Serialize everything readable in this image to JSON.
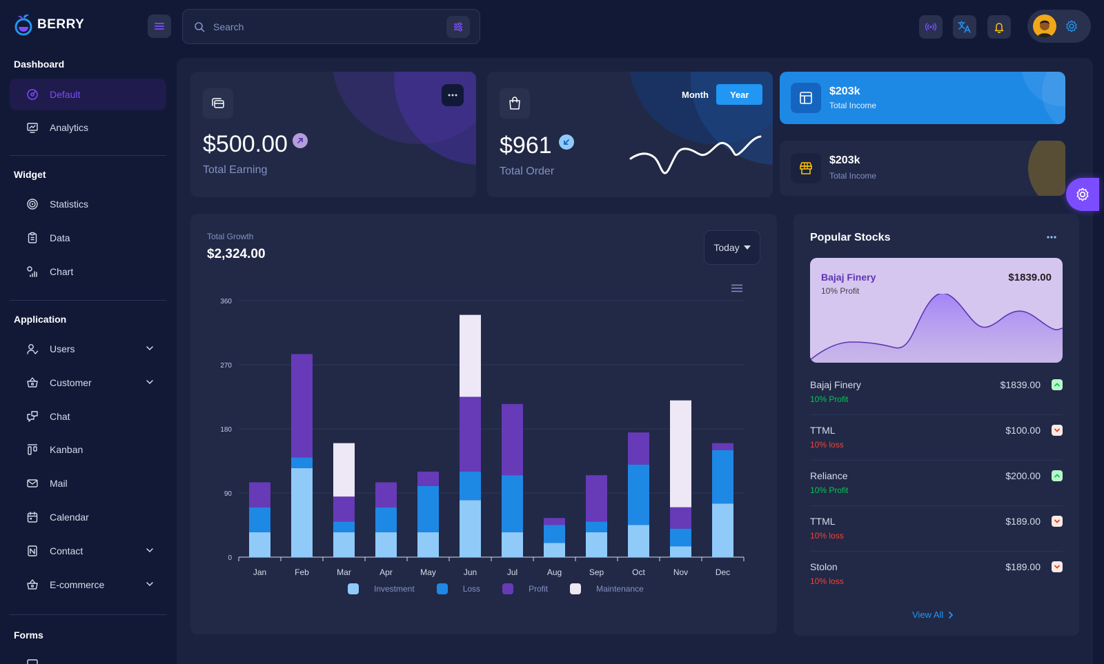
{
  "app": {
    "name": "BERRY"
  },
  "header": {
    "search": {
      "placeholder": "Search",
      "value": ""
    }
  },
  "sidebar": {
    "groups": [
      {
        "title": "Dashboard",
        "items": [
          {
            "label": "Default",
            "icon": "dashboard-icon",
            "active": true
          },
          {
            "label": "Analytics",
            "icon": "analytics-icon"
          }
        ]
      },
      {
        "title": "Widget",
        "items": [
          {
            "label": "Statistics",
            "icon": "statistics-icon"
          },
          {
            "label": "Data",
            "icon": "data-icon"
          },
          {
            "label": "Chart",
            "icon": "chart-icon"
          }
        ]
      },
      {
        "title": "Application",
        "items": [
          {
            "label": "Users",
            "icon": "users-icon",
            "expandable": true
          },
          {
            "label": "Customer",
            "icon": "customer-icon",
            "expandable": true
          },
          {
            "label": "Chat",
            "icon": "chat-icon"
          },
          {
            "label": "Kanban",
            "icon": "kanban-icon"
          },
          {
            "label": "Mail",
            "icon": "mail-icon"
          },
          {
            "label": "Calendar",
            "icon": "calendar-icon"
          },
          {
            "label": "Contact",
            "icon": "contact-icon",
            "expandable": true
          },
          {
            "label": "E-commerce",
            "icon": "ecommerce-icon",
            "expandable": true
          }
        ]
      },
      {
        "title": "Forms",
        "items": []
      }
    ]
  },
  "earning_card": {
    "value": "$500.00",
    "label": "Total Earning"
  },
  "order_card": {
    "value": "$961",
    "label": "Total Order",
    "toggle": [
      "Month",
      "Year"
    ],
    "selected": "Year"
  },
  "income_cards": [
    {
      "value": "$203k",
      "label": "Total Income",
      "style": "primary"
    },
    {
      "value": "$203k",
      "label": "Total Income",
      "style": "dark"
    }
  ],
  "growth": {
    "label": "Total Growth",
    "value": "$2,324.00",
    "period": "Today"
  },
  "chart_data": {
    "type": "bar",
    "stacked": true,
    "categories": [
      "Jan",
      "Feb",
      "Mar",
      "Apr",
      "May",
      "Jun",
      "Jul",
      "Aug",
      "Sep",
      "Oct",
      "Nov",
      "Dec"
    ],
    "series": [
      {
        "name": "Investment",
        "color": "#90caf9",
        "values": [
          35,
          125,
          35,
          35,
          35,
          80,
          35,
          20,
          35,
          45,
          15,
          75
        ]
      },
      {
        "name": "Loss",
        "color": "#1e88e5",
        "values": [
          35,
          15,
          15,
          35,
          65,
          40,
          80,
          25,
          15,
          85,
          25,
          75
        ]
      },
      {
        "name": "Profit",
        "color": "#673ab7",
        "values": [
          35,
          145,
          35,
          35,
          20,
          105,
          100,
          10,
          65,
          45,
          30,
          10
        ]
      },
      {
        "name": "Maintenance",
        "color": "#ede7f6",
        "values": [
          0,
          0,
          75,
          0,
          0,
          115,
          0,
          0,
          0,
          0,
          150,
          0
        ]
      }
    ],
    "y_ticks": [
      0,
      90,
      180,
      270,
      360
    ],
    "ylim": [
      0,
      360
    ]
  },
  "stocks": {
    "title": "Popular Stocks",
    "featured": {
      "name": "Bajaj Finery",
      "profit": "10% Profit",
      "price": "$1839.00"
    },
    "rows": [
      {
        "name": "Bajaj Finery",
        "change": "10% Profit",
        "price": "$1839.00",
        "trend": "up"
      },
      {
        "name": "TTML",
        "change": "10% loss",
        "price": "$100.00",
        "trend": "down"
      },
      {
        "name": "Reliance",
        "change": "10% Profit",
        "price": "$200.00",
        "trend": "up"
      },
      {
        "name": "TTML",
        "change": "10% loss",
        "price": "$189.00",
        "trend": "down"
      },
      {
        "name": "Stolon",
        "change": "10% loss",
        "price": "$189.00",
        "trend": "down"
      }
    ],
    "view_all": "View All"
  },
  "colors": {
    "primary": "#2196f3",
    "secondary": "#7c4dff",
    "success": "#00e676",
    "error": "#f44336",
    "bg": "#111936",
    "card": "#212946"
  }
}
